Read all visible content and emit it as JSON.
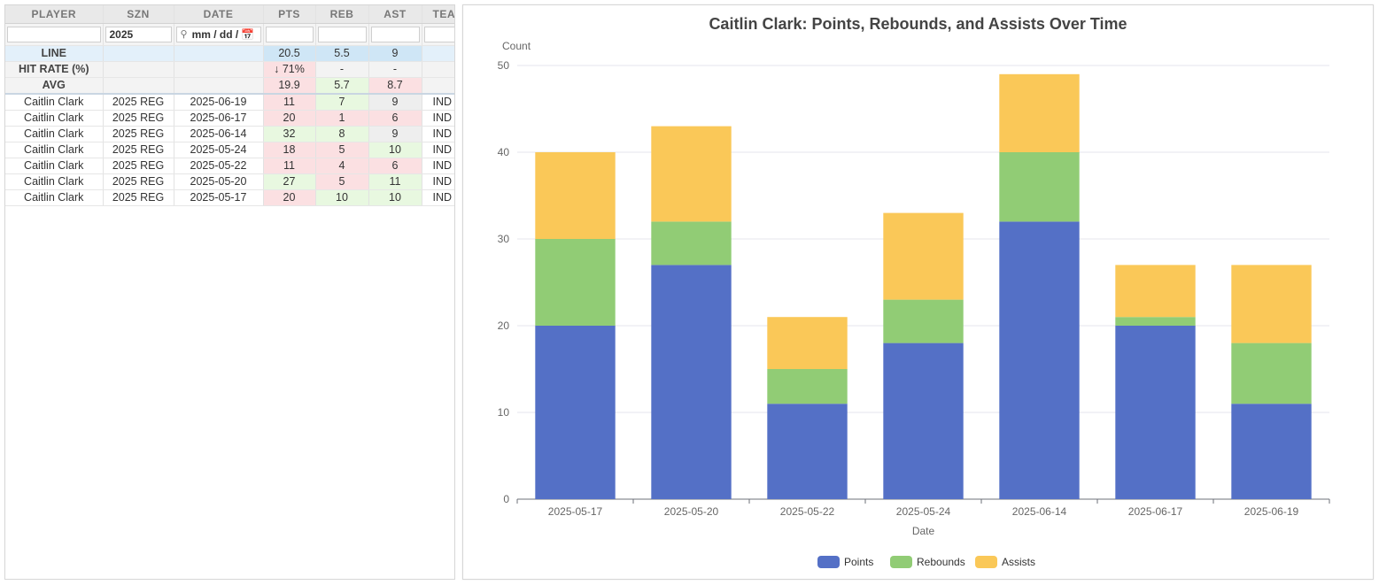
{
  "table": {
    "columns": [
      "PLAYER",
      "SZN",
      "DATE",
      "PTS",
      "REB",
      "AST",
      "TEAM"
    ],
    "filters": {
      "player": "",
      "szn": "2025",
      "date": "mm / dd /",
      "pts": "",
      "reb": "",
      "ast": "",
      "team": ""
    },
    "summary": {
      "line": {
        "label": "LINE",
        "pts": "20.5",
        "reb": "5.5",
        "ast": "9"
      },
      "hit_rate": {
        "label": "HIT RATE (%)",
        "pts": "↓ 71%",
        "reb": "-",
        "ast": "-"
      },
      "avg": {
        "label": "AVG",
        "pts": "19.9",
        "reb": "5.7",
        "ast": "8.7"
      }
    },
    "rows": [
      {
        "player": "Caitlin Clark",
        "szn": "2025 REG",
        "date": "2025-06-19",
        "pts": "11",
        "reb": "7",
        "ast": "9",
        "team": "IND"
      },
      {
        "player": "Caitlin Clark",
        "szn": "2025 REG",
        "date": "2025-06-17",
        "pts": "20",
        "reb": "1",
        "ast": "6",
        "team": "IND"
      },
      {
        "player": "Caitlin Clark",
        "szn": "2025 REG",
        "date": "2025-06-14",
        "pts": "32",
        "reb": "8",
        "ast": "9",
        "team": "IND"
      },
      {
        "player": "Caitlin Clark",
        "szn": "2025 REG",
        "date": "2025-05-24",
        "pts": "18",
        "reb": "5",
        "ast": "10",
        "team": "IND"
      },
      {
        "player": "Caitlin Clark",
        "szn": "2025 REG",
        "date": "2025-05-22",
        "pts": "11",
        "reb": "4",
        "ast": "6",
        "team": "IND"
      },
      {
        "player": "Caitlin Clark",
        "szn": "2025 REG",
        "date": "2025-05-20",
        "pts": "27",
        "reb": "5",
        "ast": "11",
        "team": "IND"
      },
      {
        "player": "Caitlin Clark",
        "szn": "2025 REG",
        "date": "2025-05-17",
        "pts": "20",
        "reb": "10",
        "ast": "10",
        "team": "IND"
      }
    ]
  },
  "colors": {
    "points": "#5470c6",
    "rebounds": "#91cc75",
    "assists": "#fac858"
  },
  "chart_data": {
    "type": "bar",
    "stacked": true,
    "title": "Caitlin Clark: Points, Rebounds, and Assists Over Time",
    "xlabel": "Date",
    "ylabel": "Count",
    "ylim": [
      0,
      50
    ],
    "yticks": [
      0,
      10,
      20,
      30,
      40,
      50
    ],
    "grid": true,
    "legend_position": "bottom",
    "categories": [
      "2025-05-17",
      "2025-05-20",
      "2025-05-22",
      "2025-05-24",
      "2025-06-14",
      "2025-06-17",
      "2025-06-19"
    ],
    "series": [
      {
        "name": "Points",
        "color": "#5470c6",
        "values": [
          20,
          27,
          11,
          18,
          32,
          20,
          11
        ]
      },
      {
        "name": "Rebounds",
        "color": "#91cc75",
        "values": [
          10,
          5,
          4,
          5,
          8,
          1,
          7
        ]
      },
      {
        "name": "Assists",
        "color": "#fac858",
        "values": [
          10,
          11,
          6,
          10,
          9,
          6,
          9
        ]
      }
    ]
  }
}
